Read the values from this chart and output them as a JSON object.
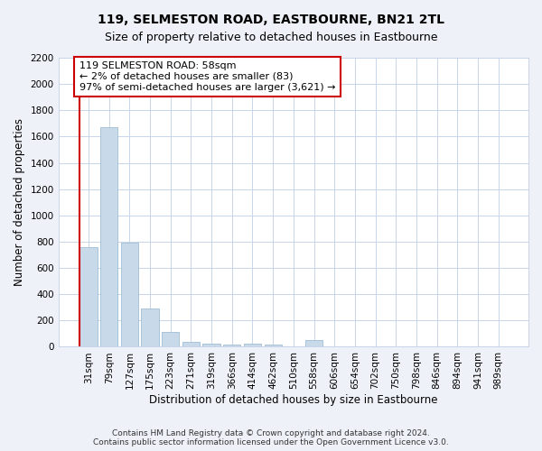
{
  "title": "119, SELMESTON ROAD, EASTBOURNE, BN21 2TL",
  "subtitle": "Size of property relative to detached houses in Eastbourne",
  "xlabel": "Distribution of detached houses by size in Eastbourne",
  "ylabel": "Number of detached properties",
  "categories": [
    "31sqm",
    "79sqm",
    "127sqm",
    "175sqm",
    "223sqm",
    "271sqm",
    "319sqm",
    "366sqm",
    "414sqm",
    "462sqm",
    "510sqm",
    "558sqm",
    "606sqm",
    "654sqm",
    "702sqm",
    "750sqm",
    "798sqm",
    "846sqm",
    "894sqm",
    "941sqm",
    "989sqm"
  ],
  "values": [
    760,
    1670,
    790,
    290,
    115,
    35,
    25,
    20,
    25,
    18,
    0,
    50,
    0,
    0,
    0,
    0,
    0,
    0,
    0,
    0,
    0
  ],
  "bar_color": "#c8daea",
  "bar_edge_color": "#a0bdd4",
  "highlight_line_color": "#cc0000",
  "annotation_text": "119 SELMESTON ROAD: 58sqm\n← 2% of detached houses are smaller (83)\n97% of semi-detached houses are larger (3,621) →",
  "annotation_box_color": "#ffffff",
  "annotation_box_edge_color": "#cc0000",
  "ylim": [
    0,
    2200
  ],
  "yticks": [
    0,
    200,
    400,
    600,
    800,
    1000,
    1200,
    1400,
    1600,
    1800,
    2000,
    2200
  ],
  "footnote": "Contains HM Land Registry data © Crown copyright and database right 2024.\nContains public sector information licensed under the Open Government Licence v3.0.",
  "bg_color": "#eef2f8",
  "plot_bg_color": "#ffffff",
  "grid_color": "#c8d4e8",
  "title_fontsize": 10,
  "subtitle_fontsize": 9,
  "xlabel_fontsize": 8.5,
  "ylabel_fontsize": 8.5,
  "tick_fontsize": 7.5,
  "footnote_fontsize": 6.5,
  "annotation_fontsize": 8
}
